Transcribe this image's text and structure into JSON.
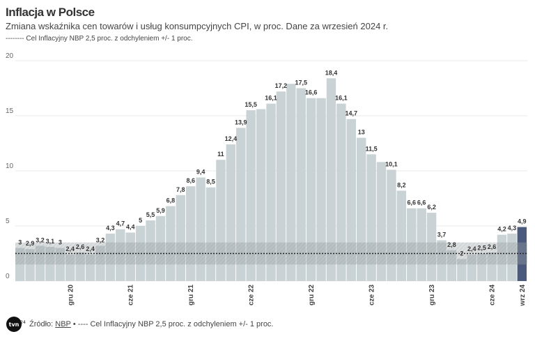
{
  "header": {
    "title": "Inflacja w Polsce",
    "subtitle": "Zmiana wskaźnika cen towarów i usług konsumpcyjnych CPI, w proc. Dane za wrzesień 2024 r.",
    "legend": "-------- Cel Inflacyjny NBP 2,5 proc. z odchyleniem +/- 1 proc."
  },
  "footer": {
    "source_label": "Źródło:",
    "source_link": "NBP",
    "note": "• ---- Cel Inflacyjny NBP 2,5 proc. z odchyleniem +/- 1 proc.",
    "logo_text": "tvn24"
  },
  "chart_data": {
    "type": "bar",
    "title": "Inflacja w Polsce",
    "subtitle": "Zmiana wskaźnika cen towarów i usług konsumpcyjnych CPI, w proc. Dane za wrzesień 2024 r.",
    "xlabel": "",
    "ylabel": "",
    "ylim": [
      0,
      20
    ],
    "yticks": [
      "0",
      "5",
      "10",
      "15",
      "20"
    ],
    "grid": true,
    "x_tick_labels": [
      {
        "index": 5,
        "label": "gru 20"
      },
      {
        "index": 11,
        "label": "cze 21"
      },
      {
        "index": 17,
        "label": "gru 21"
      },
      {
        "index": 23,
        "label": "cze 22"
      },
      {
        "index": 29,
        "label": "gru 22"
      },
      {
        "index": 35,
        "label": "cze 23"
      },
      {
        "index": 41,
        "label": "gru 23"
      },
      {
        "index": 47,
        "label": "cze 24"
      },
      {
        "index": 50,
        "label": "wrz 24"
      }
    ],
    "values": [
      3.0,
      2.9,
      3.2,
      3.1,
      3.0,
      2.4,
      2.6,
      2.4,
      3.2,
      4.3,
      4.7,
      4.4,
      5.0,
      5.5,
      5.9,
      6.8,
      7.8,
      8.6,
      9.4,
      8.5,
      11.0,
      12.4,
      13.9,
      15.5,
      15.6,
      16.1,
      17.2,
      17.9,
      17.5,
      16.6,
      16.6,
      18.4,
      16.1,
      14.7,
      13.0,
      11.5,
      10.8,
      10.1,
      8.2,
      6.6,
      6.6,
      6.2,
      3.7,
      2.8,
      2.0,
      2.4,
      2.5,
      2.6,
      4.2,
      4.3,
      4.9
    ],
    "data_labels": [
      "3",
      "2,9",
      "3,2",
      "3,1",
      "3",
      "2,4",
      "2,6",
      "2,4",
      "3,2",
      "4,3",
      "4,7",
      "4,4",
      "5",
      "5,5",
      "5,9",
      "6,8",
      "7,8",
      "8,6",
      "9,4",
      "8,5",
      "11",
      "12,4",
      "13,9",
      "15,5",
      null,
      "16,1",
      "17,2",
      null,
      "17,5",
      "16,6",
      null,
      "18,4",
      "16,1",
      "14,7",
      "13",
      "11,5",
      null,
      "10,1",
      "8,2",
      "6,6",
      "6,6",
      "6,2",
      "3,7",
      "2,8",
      "2",
      "2,4",
      "2,5",
      "2,6",
      "4,2",
      "4,3",
      "4,9"
    ],
    "target": {
      "value": 2.5,
      "lower": 1.5,
      "upper": 3.5
    },
    "colors": {
      "bar": "#c9d2d4",
      "highlight_bar": "#4b5a7c",
      "band": "#9aa3a6",
      "target_line": "#222222",
      "grid": "#e8e8e8"
    }
  }
}
